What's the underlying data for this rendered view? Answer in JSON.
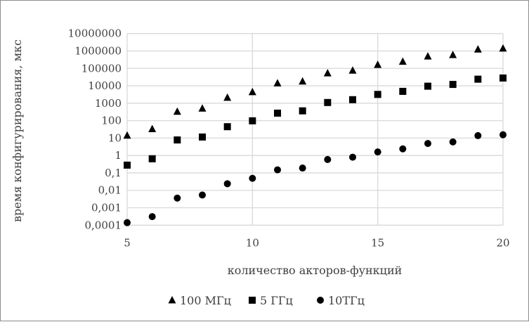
{
  "chart_data": {
    "type": "scatter",
    "title": "",
    "xlabel": "количество акторов-функций",
    "ylabel": "время конфигурирования, мкс",
    "xlim": [
      5,
      20
    ],
    "ylim": [
      0.0001,
      10000000
    ],
    "yscale": "log",
    "x_ticks": [
      "5",
      "10",
      "15",
      "20"
    ],
    "x_tick_values": [
      5,
      10,
      15,
      20
    ],
    "y_ticks": [
      "0,0001",
      "0,001",
      "0,01",
      "0,1",
      "1",
      "10",
      "100",
      "1000",
      "10000",
      "100000",
      "1000000",
      "10000000"
    ],
    "grid": true,
    "legend_position": "bottom",
    "x": [
      5,
      6,
      7,
      8,
      9,
      10,
      11,
      12,
      13,
      14,
      15,
      16,
      17,
      18,
      19,
      20
    ],
    "series": [
      {
        "name": "100 МГц",
        "marker": "triangle",
        "values": [
          14,
          33,
          330,
          500,
          2100,
          4400,
          14000,
          18000,
          53000,
          76000,
          162000,
          245000,
          490000,
          590000,
          1230000,
          1400000
        ]
      },
      {
        "name": "5 ГГц",
        "marker": "square",
        "values": [
          0.28,
          0.65,
          7.8,
          11.5,
          45,
          98,
          270,
          365,
          1100,
          1600,
          3200,
          4800,
          9500,
          12000,
          24000,
          28000
        ]
      },
      {
        "name": "10ТГц",
        "marker": "circle",
        "values": [
          0.00014,
          0.00031,
          0.0036,
          0.0054,
          0.024,
          0.049,
          0.15,
          0.19,
          0.59,
          0.8,
          1.6,
          2.4,
          4.9,
          6,
          13.8,
          15.5
        ]
      }
    ],
    "colors": {
      "marker": "#000000",
      "grid": "#d9d9d9",
      "text": "#404040"
    }
  }
}
